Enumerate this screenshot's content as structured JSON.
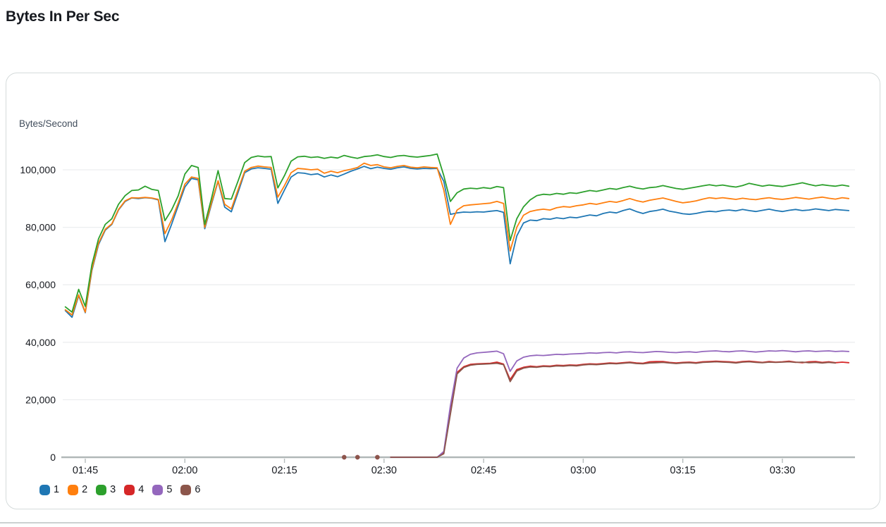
{
  "page": {
    "title": "Bytes In Per Sec"
  },
  "style": {
    "text_color": "#16191f",
    "muted_text_color": "#414d5c",
    "grid_color": "#eceeef",
    "axis_color": "#b1b8b8",
    "tick_color": "#b5bcbc",
    "card_border_color": "#d5dbdb",
    "divider_color": "#ccd1d1"
  },
  "chart_data": {
    "type": "line",
    "title": "Bytes In Per Sec",
    "xlabel": "",
    "ylabel": "Bytes/Second",
    "ylim": [
      0,
      108000
    ],
    "yticks": [
      0,
      20000,
      40000,
      60000,
      80000,
      100000
    ],
    "x_tick_labels": [
      "01:45",
      "02:00",
      "02:15",
      "02:30",
      "02:45",
      "03:00",
      "03:15",
      "03:30"
    ],
    "grid": "horizontal-only",
    "legend_position": "bottom-left",
    "x": [
      "01:42",
      "01:43",
      "01:44",
      "01:45",
      "01:46",
      "01:47",
      "01:48",
      "01:49",
      "01:50",
      "01:51",
      "01:52",
      "01:53",
      "01:54",
      "01:55",
      "01:56",
      "01:57",
      "01:58",
      "01:59",
      "02:00",
      "02:01",
      "02:02",
      "02:03",
      "02:04",
      "02:05",
      "02:06",
      "02:07",
      "02:08",
      "02:09",
      "02:10",
      "02:11",
      "02:12",
      "02:13",
      "02:14",
      "02:15",
      "02:16",
      "02:17",
      "02:18",
      "02:19",
      "02:20",
      "02:21",
      "02:22",
      "02:23",
      "02:24",
      "02:25",
      "02:26",
      "02:27",
      "02:28",
      "02:29",
      "02:30",
      "02:31",
      "02:32",
      "02:33",
      "02:34",
      "02:35",
      "02:36",
      "02:37",
      "02:38",
      "02:39",
      "02:40",
      "02:41",
      "02:42",
      "02:43",
      "02:44",
      "02:45",
      "02:46",
      "02:47",
      "02:48",
      "02:49",
      "02:50",
      "02:51",
      "02:52",
      "02:53",
      "02:54",
      "02:55",
      "02:56",
      "02:57",
      "02:58",
      "02:59",
      "03:00",
      "03:01",
      "03:02",
      "03:03",
      "03:04",
      "03:05",
      "03:06",
      "03:07",
      "03:08",
      "03:09",
      "03:10",
      "03:11",
      "03:12",
      "03:13",
      "03:14",
      "03:15",
      "03:16",
      "03:17",
      "03:18",
      "03:19",
      "03:20",
      "03:21",
      "03:22",
      "03:23",
      "03:24",
      "03:25",
      "03:26",
      "03:27",
      "03:28",
      "03:29",
      "03:30",
      "03:31",
      "03:32",
      "03:33",
      "03:34",
      "03:35",
      "03:36",
      "03:37",
      "03:38",
      "03:39",
      "03:40"
    ],
    "series": [
      {
        "name": "1",
        "color": "#1f77b4",
        "values": [
          51000,
          48700,
          56200,
          50300,
          65000,
          74000,
          79000,
          81000,
          86000,
          89000,
          90200,
          90000,
          90300,
          90100,
          89500,
          75000,
          81000,
          87500,
          94000,
          97000,
          96500,
          79500,
          88000,
          96000,
          87000,
          85400,
          92000,
          99000,
          100300,
          100700,
          100500,
          100200,
          88300,
          93000,
          97500,
          99000,
          98800,
          98300,
          98600,
          97500,
          98200,
          97600,
          98500,
          99500,
          100300,
          101200,
          100400,
          100900,
          100500,
          100200,
          100700,
          101000,
          100500,
          100300,
          100500,
          100400,
          100500,
          96000,
          84500,
          85000,
          85300,
          85200,
          85400,
          85300,
          85600,
          85800,
          85200,
          67300,
          77000,
          81500,
          82500,
          82300,
          83000,
          82800,
          83300,
          83000,
          83500,
          83300,
          83800,
          84300,
          84000,
          84800,
          85300,
          85000,
          85800,
          86400,
          85500,
          84800,
          85500,
          85800,
          86300,
          85600,
          85200,
          84700,
          84500,
          84800,
          85300,
          85600,
          85400,
          85800,
          86000,
          85700,
          86200,
          85800,
          85500,
          85900,
          86300,
          85800,
          85500,
          85900,
          86200,
          85800,
          86000,
          86400,
          86100,
          85800,
          86200,
          86000,
          85800
        ]
      },
      {
        "name": "2",
        "color": "#ff7f0e",
        "values": [
          51300,
          49500,
          56500,
          50500,
          65500,
          74500,
          79300,
          81200,
          86200,
          89200,
          90300,
          90200,
          90400,
          90200,
          89700,
          77800,
          82500,
          88500,
          95000,
          97500,
          97000,
          80000,
          88500,
          96200,
          88000,
          86400,
          93000,
          99500,
          100800,
          101300,
          101000,
          100800,
          90500,
          94500,
          99000,
          100500,
          100300,
          100000,
          100200,
          98800,
          99500,
          99000,
          99700,
          100200,
          100800,
          102300,
          101500,
          101800,
          101000,
          100700,
          101200,
          101500,
          100900,
          100700,
          101000,
          100800,
          100700,
          93000,
          81000,
          86000,
          87500,
          87800,
          88000,
          88200,
          88400,
          89000,
          88300,
          71800,
          80000,
          84200,
          85500,
          86000,
          86300,
          86000,
          86800,
          87200,
          87000,
          87500,
          87800,
          88300,
          88000,
          88500,
          89000,
          88700,
          89300,
          90000,
          89300,
          88800,
          89400,
          89800,
          90200,
          89600,
          89000,
          88500,
          88800,
          89200,
          89800,
          90300,
          90000,
          90300,
          90000,
          89700,
          90100,
          89800,
          89600,
          90000,
          90300,
          89900,
          89700,
          90000,
          90400,
          90100,
          89800,
          90200,
          90500,
          90100,
          89800,
          90300,
          90000
        ]
      },
      {
        "name": "3",
        "color": "#2ca02c",
        "values": [
          52300,
          50500,
          58400,
          52500,
          67000,
          76000,
          81000,
          83000,
          88000,
          91000,
          92800,
          93000,
          94300,
          93200,
          92800,
          82300,
          86000,
          91000,
          98500,
          101500,
          100800,
          81000,
          90000,
          99700,
          90000,
          89800,
          96000,
          102500,
          104300,
          104800,
          104500,
          104600,
          93700,
          98000,
          103000,
          104500,
          104700,
          104300,
          104500,
          104000,
          104400,
          104100,
          105000,
          104400,
          104000,
          104600,
          104800,
          105200,
          104600,
          104300,
          104800,
          105000,
          104600,
          104400,
          104700,
          105000,
          105500,
          98000,
          89000,
          92000,
          93300,
          93600,
          93400,
          93800,
          93500,
          94200,
          93800,
          75400,
          83000,
          87100,
          89500,
          91000,
          91500,
          91300,
          91800,
          91500,
          92000,
          91800,
          92300,
          92800,
          92500,
          93000,
          93500,
          93200,
          93800,
          94300,
          93700,
          93300,
          93800,
          94000,
          94500,
          94000,
          93500,
          93200,
          93600,
          94000,
          94400,
          94800,
          94400,
          94700,
          94300,
          94000,
          94500,
          95300,
          94800,
          94300,
          94700,
          94400,
          94200,
          94600,
          95000,
          95500,
          94900,
          94400,
          94800,
          94500,
          94300,
          94700,
          94300
        ]
      },
      {
        "name": "4",
        "color": "#d62728",
        "values": [
          null,
          null,
          null,
          null,
          null,
          null,
          null,
          null,
          null,
          null,
          null,
          null,
          null,
          null,
          null,
          null,
          null,
          null,
          null,
          null,
          null,
          null,
          null,
          null,
          null,
          null,
          null,
          null,
          null,
          null,
          null,
          null,
          null,
          null,
          null,
          null,
          null,
          null,
          null,
          null,
          null,
          null,
          0,
          null,
          0,
          null,
          null,
          0,
          null,
          0,
          0,
          0,
          0,
          0,
          0,
          0,
          0,
          1500,
          16000,
          29500,
          31500,
          32300,
          32500,
          32600,
          32700,
          33100,
          32400,
          27000,
          30500,
          31300,
          31700,
          31500,
          31800,
          31700,
          32000,
          31900,
          32100,
          32000,
          32300,
          32500,
          32400,
          32600,
          32800,
          32700,
          32900,
          33100,
          32800,
          32700,
          33200,
          33300,
          33300,
          33000,
          32800,
          33000,
          33100,
          32900,
          33200,
          33300,
          33400,
          33300,
          33200,
          33000,
          33300,
          33400,
          33200,
          33000,
          33300,
          33100,
          33200,
          33400,
          33100,
          32900,
          33200,
          33300,
          33000,
          33200,
          32900,
          33100,
          32900
        ]
      },
      {
        "name": "5",
        "color": "#9467bd",
        "values": [
          null,
          null,
          null,
          null,
          null,
          null,
          null,
          null,
          null,
          null,
          null,
          null,
          null,
          null,
          null,
          null,
          null,
          null,
          null,
          null,
          null,
          null,
          null,
          null,
          null,
          null,
          null,
          null,
          null,
          null,
          null,
          null,
          null,
          null,
          null,
          null,
          null,
          null,
          null,
          null,
          null,
          null,
          0,
          null,
          0,
          null,
          null,
          0,
          null,
          0,
          0,
          0,
          0,
          0,
          0,
          0,
          0,
          2000,
          18000,
          31000,
          34500,
          35800,
          36300,
          36500,
          36700,
          36900,
          36000,
          29900,
          33500,
          34800,
          35300,
          35500,
          35400,
          35600,
          35800,
          35700,
          35900,
          36000,
          36100,
          36300,
          36200,
          36400,
          36500,
          36300,
          36600,
          36700,
          36500,
          36400,
          36600,
          36800,
          36700,
          36500,
          36400,
          36600,
          36700,
          36500,
          36800,
          36900,
          37000,
          36800,
          36700,
          36900,
          37000,
          36800,
          36600,
          36800,
          37000,
          36900,
          37100,
          36900,
          36700,
          36900,
          37000,
          36800,
          36900,
          37000,
          36800,
          36900,
          36800
        ]
      },
      {
        "name": "6",
        "color": "#8c564b",
        "values": [
          null,
          null,
          null,
          null,
          null,
          null,
          null,
          null,
          null,
          null,
          null,
          null,
          null,
          null,
          null,
          null,
          null,
          null,
          null,
          null,
          null,
          null,
          null,
          null,
          null,
          null,
          null,
          null,
          null,
          null,
          null,
          null,
          null,
          null,
          null,
          null,
          null,
          null,
          null,
          null,
          null,
          null,
          0,
          null,
          0,
          null,
          null,
          0,
          null,
          0,
          0,
          0,
          0,
          0,
          0,
          0,
          0,
          1200,
          15000,
          29000,
          31200,
          32000,
          32300,
          32400,
          32500,
          32700,
          32200,
          26300,
          30000,
          31000,
          31400,
          31300,
          31600,
          31500,
          31800,
          31700,
          31900,
          31800,
          32100,
          32300,
          32200,
          32400,
          32600,
          32500,
          32700,
          32900,
          32600,
          32500,
          32800,
          32900,
          33000,
          32800,
          32600,
          32800,
          32900,
          32700,
          33000,
          33100,
          33200,
          33100,
          33000,
          32800,
          33100,
          33200,
          33000,
          32900,
          33100,
          33000,
          33100,
          33200,
          33000,
          33100,
          32900,
          33000,
          32800,
          33000,
          32800
        ]
      }
    ]
  }
}
